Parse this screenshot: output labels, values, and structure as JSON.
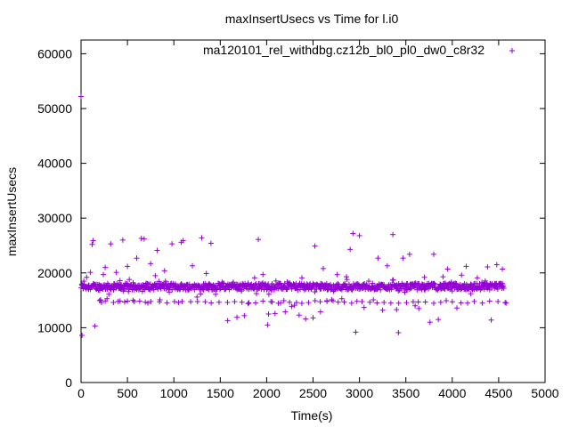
{
  "chart_data": {
    "type": "scatter",
    "title": "maxInsertUsecs vs Time for l.i0",
    "xlabel": "Time(s)",
    "ylabel": "maxInsertUsecs",
    "xlim": [
      0,
      5000
    ],
    "ylim": [
      0,
      62500
    ],
    "xticks": [
      0,
      500,
      1000,
      1500,
      2000,
      2500,
      3000,
      3500,
      4000,
      4500,
      5000
    ],
    "yticks": [
      0,
      10000,
      20000,
      30000,
      40000,
      50000,
      60000
    ],
    "grid": false,
    "legend_position": "top-right",
    "series": [
      {
        "name": "ma120101_rel_withdbg.cz12b_bl0_pl0_dw0_c8r32",
        "color": "#9400d3",
        "marker": "plus",
        "band": {
          "x_start": 0,
          "x_end": 4560,
          "y_center": 17500,
          "y_spread": 1200,
          "approx_count": 900
        },
        "low_band": {
          "y": 14700,
          "note": "recurring lower cluster"
        },
        "points": [
          [
            0,
            52200
          ],
          [
            10,
            8600
          ],
          [
            30,
            18500
          ],
          [
            60,
            19200
          ],
          [
            100,
            20100
          ],
          [
            120,
            25200
          ],
          [
            130,
            25900
          ],
          [
            150,
            10300
          ],
          [
            200,
            16800
          ],
          [
            210,
            15100
          ],
          [
            220,
            14600
          ],
          [
            240,
            19700
          ],
          [
            260,
            21000
          ],
          [
            280,
            15300
          ],
          [
            300,
            16100
          ],
          [
            320,
            25300
          ],
          [
            350,
            16900
          ],
          [
            380,
            20100
          ],
          [
            400,
            14800
          ],
          [
            420,
            18600
          ],
          [
            450,
            26000
          ],
          [
            470,
            14700
          ],
          [
            500,
            21200
          ],
          [
            520,
            18800
          ],
          [
            560,
            15000
          ],
          [
            600,
            22700
          ],
          [
            650,
            26300
          ],
          [
            680,
            26200
          ],
          [
            700,
            18100
          ],
          [
            720,
            14500
          ],
          [
            750,
            21700
          ],
          [
            800,
            19500
          ],
          [
            820,
            24100
          ],
          [
            850,
            15100
          ],
          [
            900,
            20400
          ],
          [
            950,
            16500
          ],
          [
            980,
            25300
          ],
          [
            1000,
            17800
          ],
          [
            1050,
            14600
          ],
          [
            1080,
            25600
          ],
          [
            1100,
            25900
          ],
          [
            1150,
            17100
          ],
          [
            1200,
            21300
          ],
          [
            1250,
            15600
          ],
          [
            1300,
            26400
          ],
          [
            1350,
            19900
          ],
          [
            1400,
            25400
          ],
          [
            1450,
            16100
          ],
          [
            1520,
            18300
          ],
          [
            1580,
            11300
          ],
          [
            1640,
            18300
          ],
          [
            1680,
            11900
          ],
          [
            1760,
            12200
          ],
          [
            1800,
            14400
          ],
          [
            1870,
            19100
          ],
          [
            1910,
            26100
          ],
          [
            1960,
            19700
          ],
          [
            2010,
            10500
          ],
          [
            2020,
            12500
          ],
          [
            2060,
            14700
          ],
          [
            2090,
            12600
          ],
          [
            2150,
            14500
          ],
          [
            2200,
            12900
          ],
          [
            2270,
            13900
          ],
          [
            2300,
            14100
          ],
          [
            2350,
            12300
          ],
          [
            2380,
            19100
          ],
          [
            2420,
            11600
          ],
          [
            2500,
            11800
          ],
          [
            2520,
            24900
          ],
          [
            2580,
            12900
          ],
          [
            2610,
            20800
          ],
          [
            2650,
            14800
          ],
          [
            2700,
            15100
          ],
          [
            2760,
            19700
          ],
          [
            2810,
            15300
          ],
          [
            2860,
            19300
          ],
          [
            2900,
            24300
          ],
          [
            2930,
            27200
          ],
          [
            2960,
            9200
          ],
          [
            3000,
            26800
          ],
          [
            3050,
            13700
          ],
          [
            3100,
            18500
          ],
          [
            3150,
            15100
          ],
          [
            3200,
            22700
          ],
          [
            3250,
            13200
          ],
          [
            3300,
            21300
          ],
          [
            3360,
            27000
          ],
          [
            3400,
            13300
          ],
          [
            3420,
            9100
          ],
          [
            3470,
            22700
          ],
          [
            3540,
            23400
          ],
          [
            3600,
            14000
          ],
          [
            3640,
            13500
          ],
          [
            3700,
            19200
          ],
          [
            3760,
            11000
          ],
          [
            3800,
            23400
          ],
          [
            3850,
            11500
          ],
          [
            3900,
            19300
          ],
          [
            3950,
            20700
          ],
          [
            4000,
            16700
          ],
          [
            4050,
            13600
          ],
          [
            4100,
            19600
          ],
          [
            4150,
            21200
          ],
          [
            4200,
            16200
          ],
          [
            4270,
            19100
          ],
          [
            4350,
            18200
          ],
          [
            4380,
            21100
          ],
          [
            4420,
            11400
          ],
          [
            4480,
            21500
          ],
          [
            4540,
            20700
          ],
          [
            4570,
            14600
          ],
          [
            4580,
            14500
          ]
        ]
      }
    ]
  }
}
